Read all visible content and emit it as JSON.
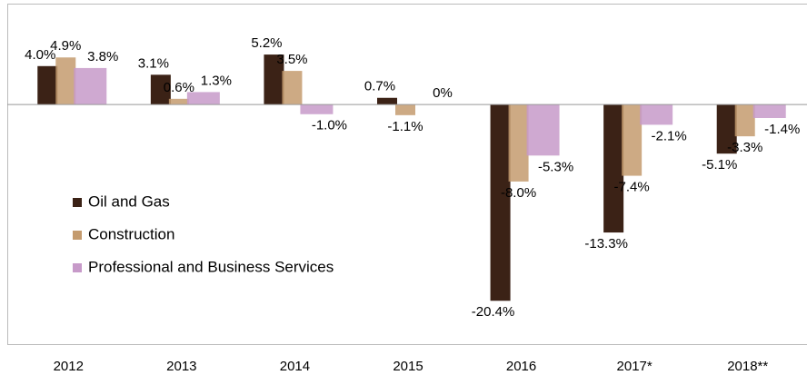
{
  "chart_data": {
    "type": "bar",
    "categories": [
      "2012",
      "2013",
      "2014",
      "2015",
      "2016",
      "2017*",
      "2018**"
    ],
    "series": [
      {
        "name": "Oil and Gas",
        "color": "#3b2216",
        "values": [
          4.0,
          3.1,
          5.2,
          0.7,
          -20.4,
          -13.3,
          -5.1
        ],
        "value_labels": [
          "4.0%",
          "3.1%",
          "5.2%",
          "0.7%",
          "-20.4%",
          "-13.3%",
          "-5.1%"
        ]
      },
      {
        "name": "Construction",
        "color": "#c49b6e",
        "values": [
          4.9,
          0.6,
          3.5,
          -1.1,
          -8.0,
          -7.4,
          -3.3
        ],
        "value_labels": [
          "4.9%",
          "0.6%",
          "3.5%",
          "-1.1%",
          "-8.0%",
          "-7.4%",
          "-3.3%"
        ]
      },
      {
        "name": "Professional and Business Services",
        "color": "#c79ac9",
        "values": [
          3.8,
          1.3,
          -1.0,
          0,
          -5.3,
          -2.1,
          -1.4
        ],
        "value_labels": [
          "3.8%",
          "1.3%",
          "-1.0%",
          "0%",
          "-5.3%",
          "-2.1%",
          "-1.4%"
        ]
      }
    ],
    "ylim": [
      -25,
      10.4
    ],
    "legend": "left"
  }
}
